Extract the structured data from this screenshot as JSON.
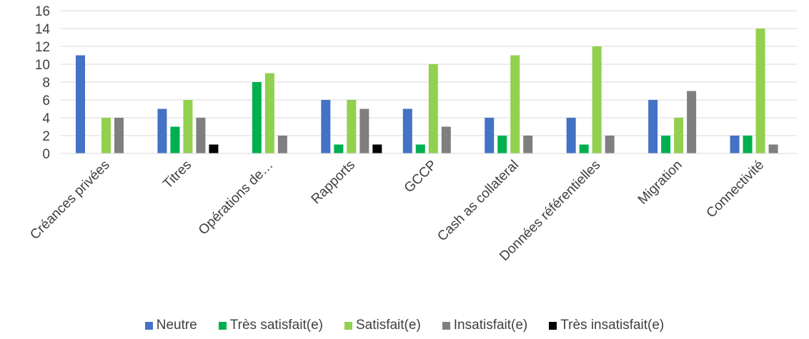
{
  "chart_data": {
    "type": "bar",
    "categories": [
      "Créances privées",
      "Titres",
      "Opérations de…",
      "Rapports",
      "GCCP",
      "Cash as collateral",
      "Données référentielles",
      "Migration",
      "Connectivité"
    ],
    "series": [
      {
        "name": "Neutre",
        "color": "#4472C4",
        "values": [
          11,
          5,
          0,
          6,
          5,
          4,
          4,
          6,
          2
        ]
      },
      {
        "name": "Très satisfait(e)",
        "color": "#00B050",
        "values": [
          0,
          3,
          8,
          1,
          1,
          2,
          1,
          2,
          2
        ]
      },
      {
        "name": "Satisfait(e)",
        "color": "#92D050",
        "values": [
          4,
          6,
          9,
          6,
          10,
          11,
          12,
          4,
          14
        ]
      },
      {
        "name": "Insatisfait(e)",
        "color": "#7F7F7F",
        "values": [
          4,
          4,
          2,
          5,
          3,
          2,
          2,
          7,
          1
        ]
      },
      {
        "name": "Très insatisfait(e)",
        "color": "#000000",
        "values": [
          0,
          1,
          0,
          1,
          0,
          0,
          0,
          0,
          0
        ]
      }
    ],
    "yticks": [
      "0",
      "2",
      "4",
      "6",
      "8",
      "10",
      "12",
      "14",
      "16"
    ],
    "ylim": [
      0,
      16
    ],
    "grid": true,
    "legend_position": "bottom"
  }
}
